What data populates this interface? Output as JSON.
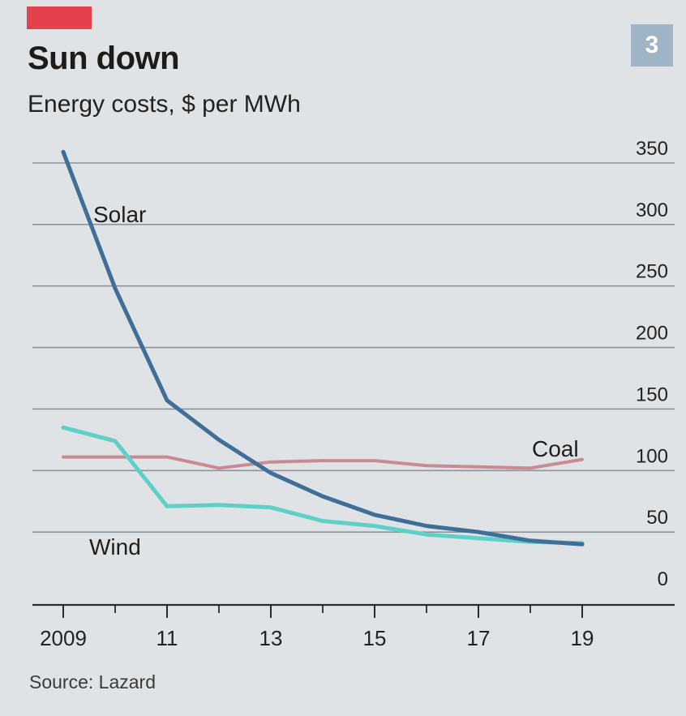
{
  "header": {
    "title": "Sun down",
    "subtitle": "Energy costs, $ per MWh",
    "page_number": "3"
  },
  "footer": {
    "source": "Source: Lazard"
  },
  "colors": {
    "background": "#dfe3e6",
    "accent_bar": "#e3414b",
    "page_badge": "#9fb4c4",
    "gridline": "#8c9399",
    "axis": "#2b2b2b",
    "solar": "#3f6f99",
    "wind": "#5fd0c8",
    "coal": "#c98a93"
  },
  "chart_data": {
    "type": "line",
    "title": "Sun down",
    "subtitle": "Energy costs, $ per MWh",
    "xlabel": "",
    "ylabel": "",
    "x": [
      2009,
      2010,
      2011,
      2012,
      2013,
      2014,
      2015,
      2016,
      2017,
      2018,
      2019
    ],
    "x_tick_values": [
      2009,
      2011,
      2013,
      2015,
      2017,
      2019
    ],
    "x_tick_labels": [
      "2009",
      "11",
      "13",
      "15",
      "17",
      "19"
    ],
    "y_ticks": [
      0,
      50,
      100,
      150,
      200,
      250,
      300,
      350
    ],
    "xlim": [
      2009,
      2019
    ],
    "ylim": [
      0,
      350
    ],
    "grid": true,
    "y_axis_side": "right",
    "series": [
      {
        "name": "Solar",
        "color_key": "solar",
        "values": [
          359,
          248,
          157,
          125,
          98,
          79,
          64,
          55,
          50,
          43,
          40
        ]
      },
      {
        "name": "Wind",
        "color_key": "wind",
        "values": [
          135,
          124,
          71,
          72,
          70,
          59,
          55,
          48,
          45,
          42,
          41
        ]
      },
      {
        "name": "Coal",
        "color_key": "coal",
        "values": [
          111,
          111,
          111,
          102,
          107,
          108,
          108,
          104,
          103,
          102,
          109
        ]
      }
    ],
    "series_labels": [
      "Solar",
      "Wind",
      "Coal"
    ],
    "source": "Source: Lazard"
  }
}
